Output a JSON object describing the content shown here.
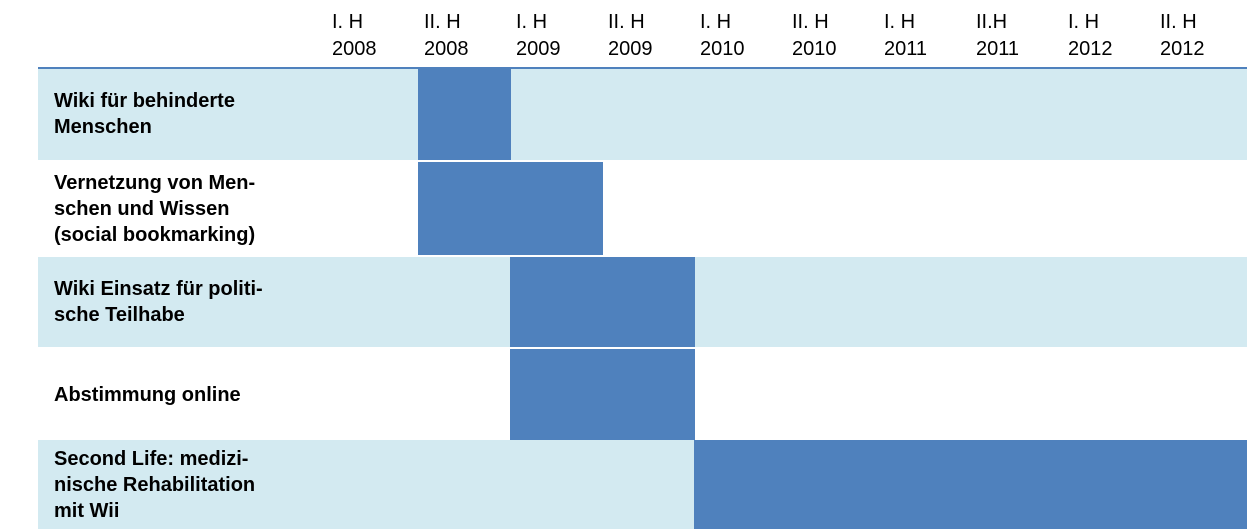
{
  "header": {
    "columns": [
      {
        "lines": [
          "I. H",
          "2008"
        ]
      },
      {
        "lines": [
          "II. H",
          "2008"
        ]
      },
      {
        "lines": [
          "I. H",
          "2009"
        ]
      },
      {
        "lines": [
          "II. H",
          "2009"
        ]
      },
      {
        "lines": [
          "I. H",
          "2010"
        ]
      },
      {
        "lines": [
          "II. H",
          "2010"
        ]
      },
      {
        "lines": [
          "I. H",
          "2011"
        ]
      },
      {
        "lines": [
          "II.H",
          "2011"
        ]
      },
      {
        "lines": [
          "I. H",
          "2012"
        ]
      },
      {
        "lines": [
          "II. H",
          "2012"
        ]
      }
    ]
  },
  "rows": [
    {
      "lines": [
        "Wiki für behinderte",
        "Menschen"
      ],
      "shaded": true,
      "active": [
        false,
        true,
        false,
        false,
        false,
        false,
        false,
        false,
        false,
        false
      ]
    },
    {
      "lines": [
        "Vernetzung von Men-",
        "schen und Wissen",
        "(social bookmarking)"
      ],
      "shaded": false,
      "active": [
        false,
        true,
        true,
        false,
        false,
        false,
        false,
        false,
        false,
        false
      ]
    },
    {
      "lines": [
        "Wiki Einsatz für politi-",
        "sche Teilhabe"
      ],
      "shaded": true,
      "active": [
        false,
        false,
        true,
        true,
        false,
        false,
        false,
        false,
        false,
        false
      ]
    },
    {
      "lines": [
        "Abstimmung online"
      ],
      "shaded": false,
      "active": [
        false,
        false,
        true,
        true,
        false,
        false,
        false,
        false,
        false,
        false
      ]
    },
    {
      "lines": [
        "Second Life: medizi-",
        "nische Rehabilitation",
        "mit Wii"
      ],
      "shaded": true,
      "active": [
        false,
        false,
        false,
        false,
        true,
        true,
        true,
        true,
        true,
        true
      ]
    }
  ],
  "colors": {
    "shade": "#d3eaf1",
    "bar": "#4f81bd",
    "rule": "#4f81bd"
  }
}
